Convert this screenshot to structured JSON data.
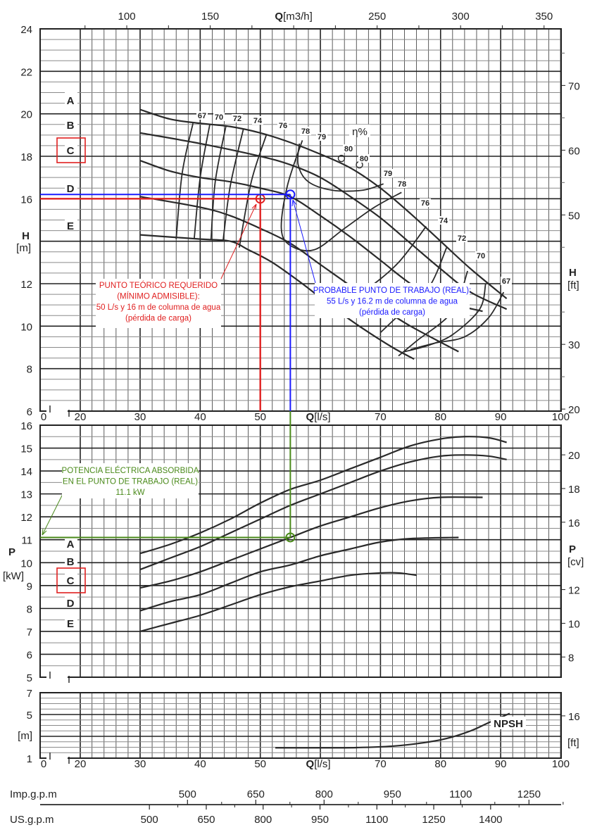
{
  "chart_data": [
    {
      "type": "line",
      "panel": "head",
      "xlabel": "Q [l/s]",
      "x2label": "Q [m3/h]",
      "ylabel": "H [m]",
      "y2label": "H [ft]",
      "xlim": [
        0,
        100
      ],
      "ylim": [
        6,
        24
      ],
      "x_ticks": [
        0,
        20,
        30,
        40,
        50,
        70,
        80,
        90,
        100
      ],
      "x2_ticks": [
        100,
        150,
        250,
        300,
        350
      ],
      "y_ticks": [
        6,
        8,
        10,
        12,
        16,
        18,
        20,
        22,
        24
      ],
      "y2_ticks": [
        20,
        30,
        50,
        60,
        70
      ],
      "grid": true,
      "curve_labels": [
        "A",
        "B",
        "C",
        "D",
        "E"
      ],
      "selected_curve": "C",
      "series": [
        {
          "name": "A",
          "points": [
            [
              30,
              20.2
            ],
            [
              35,
              19.75
            ],
            [
              40,
              19.55
            ],
            [
              45,
              19.4
            ],
            [
              50,
              19.1
            ],
            [
              55,
              18.65
            ],
            [
              60,
              18.1
            ],
            [
              65,
              17.45
            ],
            [
              70,
              16.5
            ],
            [
              75,
              15.3
            ],
            [
              80,
              14.0
            ],
            [
              85,
              12.7
            ],
            [
              91,
              11.3
            ]
          ]
        },
        {
          "name": "B",
          "points": [
            [
              30,
              19.1
            ],
            [
              40,
              18.6
            ],
            [
              50,
              18.0
            ],
            [
              55,
              17.6
            ],
            [
              60,
              17.0
            ],
            [
              65,
              16.1
            ],
            [
              70,
              15.1
            ],
            [
              75,
              13.9
            ],
            [
              80,
              12.7
            ],
            [
              85,
              11.6
            ],
            [
              91,
              10.8
            ]
          ]
        },
        {
          "name": "C",
          "points": [
            [
              30,
              17.8
            ],
            [
              35,
              17.3
            ],
            [
              40,
              17.0
            ],
            [
              45,
              16.8
            ],
            [
              50,
              16.5
            ],
            [
              55,
              16.1
            ],
            [
              60,
              15.2
            ],
            [
              65,
              14.2
            ],
            [
              70,
              13.1
            ],
            [
              75,
              12.0
            ],
            [
              80,
              11.2
            ],
            [
              87,
              10.7
            ]
          ]
        },
        {
          "name": "D",
          "points": [
            [
              30,
              16.1
            ],
            [
              40,
              15.6
            ],
            [
              45,
              15.2
            ],
            [
              50,
              14.6
            ],
            [
              55,
              13.9
            ],
            [
              60,
              12.9
            ],
            [
              65,
              11.9
            ],
            [
              70,
              10.9
            ],
            [
              75,
              10.0
            ],
            [
              83,
              8.8
            ]
          ]
        },
        {
          "name": "E",
          "points": [
            [
              30,
              14.3
            ],
            [
              40,
              14.1
            ],
            [
              45,
              14.0
            ],
            [
              48,
              13.6
            ],
            [
              52,
              13.0
            ],
            [
              57,
              12.0
            ],
            [
              62,
              10.9
            ],
            [
              67,
              9.9
            ],
            [
              72,
              9.0
            ],
            [
              75.6,
              8.45
            ]
          ]
        }
      ],
      "efficiency": {
        "title": "η%",
        "labels": [
          "67",
          "70",
          "72",
          "74",
          "76",
          "78",
          "79",
          "80",
          "80",
          "79",
          "78",
          "76",
          "74",
          "72",
          "70",
          "67"
        ],
        "curves": [
          {
            "eta": 67,
            "points": [
              [
                38.8,
                19.55
              ],
              [
                37,
                17.2
              ],
              [
                36,
                14.1
              ]
            ]
          },
          {
            "eta": 70,
            "points": [
              [
                41.6,
                19.5
              ],
              [
                40,
                17.0
              ],
              [
                39,
                14.1
              ]
            ]
          },
          {
            "eta": 72,
            "points": [
              [
                44.3,
                19.45
              ],
              [
                42.5,
                16.8
              ],
              [
                41.8,
                14.05
              ]
            ]
          },
          {
            "eta": 74,
            "points": [
              [
                47.2,
                19.3
              ],
              [
                45,
                16.6
              ],
              [
                43.8,
                14.0
              ]
            ]
          },
          {
            "eta": 76,
            "points": [
              [
                51,
                19.0
              ],
              [
                48.5,
                16.8
              ],
              [
                46.5,
                13.7
              ]
            ]
          },
          {
            "eta": 78,
            "points": [
              [
                57,
                18.75
              ],
              [
                54.5,
                16.6
              ],
              [
                53.5,
                14.6
              ],
              [
                55,
                13.8
              ],
              [
                59,
                13.6
              ],
              [
                64,
                14.6
              ],
              [
                69,
                15.6
              ],
              [
                73.5,
                16.3
              ]
            ]
          },
          {
            "eta": 79,
            "points": [
              [
                56.5,
                18.6
              ],
              [
                56.3,
                17.6
              ],
              [
                58,
                16.8
              ],
              [
                62,
                16.4
              ],
              [
                67,
                16.4
              ],
              [
                70.5,
                16.7
              ]
            ]
          },
          {
            "eta": 76,
            "points": [
              [
                77.6,
                14.7
              ],
              [
                73,
                13.0
              ],
              [
                68,
                11.8
              ],
              [
                64,
                11.2
              ]
            ]
          },
          {
            "eta": 74,
            "points": [
              [
                81,
                13.7
              ],
              [
                78,
                11.8
              ],
              [
                73,
                10.5
              ],
              [
                70,
                9.7
              ]
            ]
          },
          {
            "eta": 72,
            "points": [
              [
                84.5,
                12.6
              ],
              [
                82,
                10.7
              ],
              [
                76,
                9.3
              ],
              [
                73,
                8.6
              ]
            ]
          },
          {
            "eta": 70,
            "points": [
              [
                87.5,
                12.0
              ],
              [
                86.5,
                10.8
              ],
              [
                82,
                9.6
              ],
              [
                78,
                9.1
              ],
              [
                74,
                8.8
              ]
            ]
          },
          {
            "eta": 67,
            "points": [
              [
                90.5,
                11.6
              ],
              [
                88,
                10.4
              ],
              [
                84,
                9.5
              ],
              [
                79,
                9.2
              ],
              [
                75,
                8.9
              ]
            ]
          }
        ],
        "bep_markers": [
          [
            63.5,
            17.9
          ],
          [
            66.5,
            17.6
          ]
        ]
      },
      "annotations": {
        "required_point": {
          "q": 50,
          "h": 16,
          "color": "#e02020",
          "lines": [
            "PUNTO TEÓRICO  REQUERIDO",
            "(MÍNIMO  ADMISIBLE):",
            "50 L/s y 16 m de  columna de agua",
            "(pérdida de carga)"
          ]
        },
        "working_point": {
          "q": 55,
          "h": 16.2,
          "color": "#1a1aff",
          "lines": [
            "PROBABLE  PUNTO DE  TRABAJO (REAL):",
            "55 L/s y 16.2 m de  columna de agua",
            "(pérdida de carga)"
          ]
        }
      }
    },
    {
      "type": "line",
      "panel": "power",
      "ylabel": "P [kW]",
      "y2label": "P [cv]",
      "ylim": [
        5,
        16
      ],
      "y_ticks": [
        5,
        6,
        7,
        8,
        9,
        10,
        11,
        12,
        13,
        14,
        15,
        16
      ],
      "y2_ticks": [
        8,
        10,
        12,
        16,
        18,
        20
      ],
      "curve_labels": [
        "A",
        "B",
        "C",
        "D",
        "E"
      ],
      "selected_curve": "C",
      "series": [
        {
          "name": "A",
          "points": [
            [
              30,
              10.4
            ],
            [
              35,
              10.8
            ],
            [
              40,
              11.3
            ],
            [
              45,
              11.9
            ],
            [
              50,
              12.6
            ],
            [
              55,
              13.2
            ],
            [
              60,
              13.6
            ],
            [
              65,
              14.1
            ],
            [
              70,
              14.6
            ],
            [
              75,
              15.1
            ],
            [
              80,
              15.4
            ],
            [
              84,
              15.5
            ],
            [
              88,
              15.45
            ],
            [
              91,
              15.25
            ]
          ]
        },
        {
          "name": "B",
          "points": [
            [
              30,
              9.7
            ],
            [
              35,
              10.2
            ],
            [
              40,
              10.7
            ],
            [
              45,
              11.3
            ],
            [
              50,
              11.9
            ],
            [
              55,
              12.5
            ],
            [
              60,
              13.0
            ],
            [
              65,
              13.5
            ],
            [
              70,
              14.0
            ],
            [
              75,
              14.4
            ],
            [
              80,
              14.65
            ],
            [
              84,
              14.7
            ],
            [
              88,
              14.65
            ],
            [
              91,
              14.5
            ]
          ]
        },
        {
          "name": "C",
          "points": [
            [
              30,
              8.9
            ],
            [
              35,
              9.2
            ],
            [
              40,
              9.6
            ],
            [
              45,
              10.1
            ],
            [
              50,
              10.6
            ],
            [
              55,
              11.1
            ],
            [
              60,
              11.6
            ],
            [
              65,
              12.0
            ],
            [
              70,
              12.4
            ],
            [
              75,
              12.7
            ],
            [
              80,
              12.85
            ],
            [
              87,
              12.85
            ]
          ]
        },
        {
          "name": "D",
          "points": [
            [
              30,
              7.9
            ],
            [
              35,
              8.3
            ],
            [
              40,
              8.6
            ],
            [
              45,
              9.1
            ],
            [
              50,
              9.6
            ],
            [
              55,
              9.9
            ],
            [
              60,
              10.3
            ],
            [
              65,
              10.6
            ],
            [
              70,
              10.9
            ],
            [
              75,
              11.05
            ],
            [
              83,
              11.1
            ]
          ]
        },
        {
          "name": "E",
          "points": [
            [
              30,
              7.0
            ],
            [
              35,
              7.35
            ],
            [
              40,
              7.7
            ],
            [
              45,
              8.15
            ],
            [
              50,
              8.6
            ],
            [
              55,
              8.95
            ],
            [
              60,
              9.2
            ],
            [
              65,
              9.45
            ],
            [
              70,
              9.55
            ],
            [
              73,
              9.55
            ],
            [
              76,
              9.45
            ]
          ]
        }
      ],
      "annotations": {
        "power_point": {
          "q": 55,
          "p": 11.1,
          "color": "#4a8a1a",
          "lines": [
            "POTENCIA  ELÉCTRICA  ABSORBIDA",
            "EN EL  PUNTO DE  TRABAJO (REAL)",
            "11.1 kW"
          ]
        }
      }
    },
    {
      "type": "line",
      "panel": "npsh",
      "xlabel": "Q [l/s]",
      "ylabel": "[m]",
      "y2label": "[ft]",
      "ylim": [
        1,
        7
      ],
      "y_ticks": [
        1,
        5,
        7
      ],
      "y2_ticks": [
        16
      ],
      "series": [
        {
          "name": "NPSH",
          "points": [
            [
              52.5,
              1.95
            ],
            [
              60,
              1.95
            ],
            [
              66,
              1.97
            ],
            [
              72,
              2.1
            ],
            [
              77,
              2.4
            ],
            [
              81,
              2.8
            ],
            [
              85,
              3.5
            ],
            [
              88,
              4.25
            ],
            [
              91.5,
              5.1
            ]
          ]
        }
      ]
    },
    {
      "type": "axis",
      "panel": "gpm",
      "axes": [
        {
          "label": "Imp.g.p.m",
          "ticks": [
            500,
            650,
            800,
            950,
            1100,
            1250
          ]
        },
        {
          "label": "US.g.p.m",
          "ticks": [
            500,
            650,
            800,
            950,
            1100,
            1250,
            1400
          ]
        }
      ]
    }
  ],
  "labels": {
    "q_ls_bold": "Q",
    "q_ls_unit": "[l/s]",
    "q_m3h_bold": "Q",
    "q_m3h_unit": "[m3/h]",
    "h_letter": "H",
    "h_m_unit": "[m]",
    "h_ft_unit": "[ft]",
    "p_letter": "P",
    "p_kw_unit": "[kW]",
    "p_cv_unit": "[cv]",
    "npsh_m_unit": "[m]",
    "npsh_ft_unit": "[ft]",
    "npsh_name": "NPSH",
    "eta": "η%"
  },
  "colors": {
    "curve": "#2a2a2a",
    "grid_major": "#222222",
    "grid_minor": "#8a8a8a",
    "required": "#e02020",
    "working": "#1a1aff",
    "power": "#4a8a1a",
    "highlight_box": "#e02020"
  }
}
